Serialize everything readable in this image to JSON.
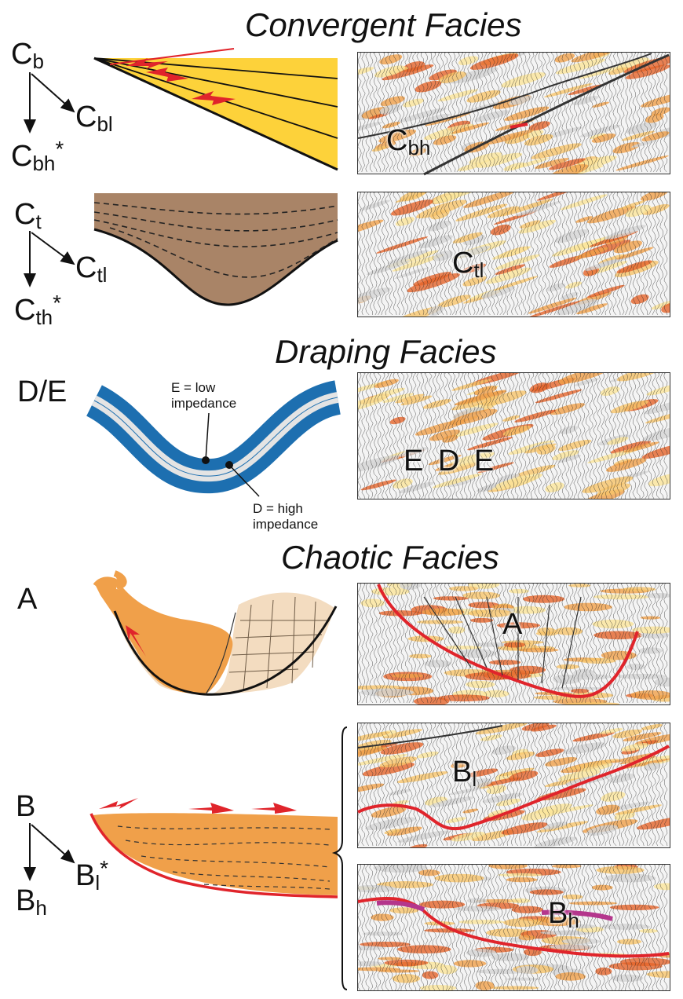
{
  "titles": {
    "convergent": "Convergent  Facies",
    "draping": "Draping  Facies",
    "chaotic": "Chaotic Facies"
  },
  "codes": {
    "cb": {
      "base": "C",
      "sub": "b"
    },
    "cbl": {
      "base": "C",
      "sub": "bl"
    },
    "cbh": {
      "base": "C",
      "sub": "bh",
      "star": "*"
    },
    "ct": {
      "base": "C",
      "sub": "t"
    },
    "ctl": {
      "base": "C",
      "sub": "tl"
    },
    "cth": {
      "base": "C",
      "sub": "th",
      "star": "*"
    },
    "de": "D/E",
    "a": "A",
    "b": "B",
    "bl": {
      "base": "B",
      "sub": "l",
      "star": "*"
    },
    "bh": {
      "base": "B",
      "sub": "h"
    }
  },
  "annotations": {
    "e_low": "E = low impedance",
    "d_high": "D = high impedance"
  },
  "panel_labels": {
    "cbh": {
      "base": "C",
      "sub": "bh"
    },
    "ctl": {
      "base": "C",
      "sub": "tl"
    },
    "ede": "E  D  E",
    "a": "A",
    "bl": {
      "base": "B",
      "sub": "l"
    },
    "bh": {
      "base": "B",
      "sub": "h"
    }
  },
  "colors": {
    "yellow": "#FDD23A",
    "brown": "#A98467",
    "blue": "#1D6FB0",
    "light_gray": "#E4E4E4",
    "orange": "#F0A04A",
    "tan": "#F3DCC0",
    "red": "#E0242B"
  }
}
